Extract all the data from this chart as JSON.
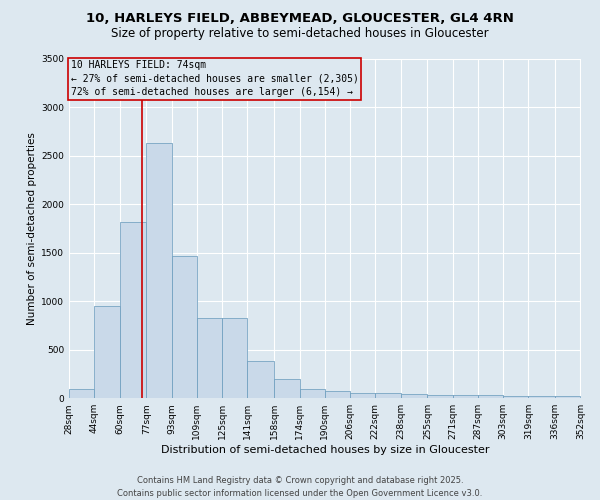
{
  "title": "10, HARLEYS FIELD, ABBEYMEAD, GLOUCESTER, GL4 4RN",
  "subtitle": "Size of property relative to semi-detached houses in Gloucester",
  "xlabel": "Distribution of semi-detached houses by size in Gloucester",
  "ylabel": "Number of semi-detached properties",
  "footer_line1": "Contains HM Land Registry data © Crown copyright and database right 2025.",
  "footer_line2": "Contains public sector information licensed under the Open Government Licence v3.0.",
  "annotation_title": "10 HARLEYS FIELD: 74sqm",
  "annotation_line1": "← 27% of semi-detached houses are smaller (2,305)",
  "annotation_line2": "72% of semi-detached houses are larger (6,154) →",
  "bin_edges": [
    28,
    44,
    60,
    77,
    93,
    109,
    125,
    141,
    158,
    174,
    190,
    206,
    222,
    238,
    255,
    271,
    287,
    303,
    319,
    336,
    352
  ],
  "bar_heights": [
    95,
    950,
    1820,
    2630,
    1470,
    830,
    830,
    380,
    200,
    100,
    70,
    55,
    50,
    40,
    35,
    30,
    28,
    25,
    22,
    20
  ],
  "bar_color": "#c9d9e9",
  "bar_edge_color": "#6699bb",
  "vline_color": "#cc0000",
  "vline_x": 74,
  "annotation_box_color": "#cc0000",
  "background_color": "#dde8f0",
  "ylim": [
    0,
    3500
  ],
  "yticks": [
    0,
    500,
    1000,
    1500,
    2000,
    2500,
    3000,
    3500
  ],
  "title_fontsize": 9.5,
  "subtitle_fontsize": 8.5,
  "tick_fontsize": 6.5,
  "ylabel_fontsize": 7.5,
  "xlabel_fontsize": 8,
  "footer_fontsize": 6,
  "annotation_fontsize": 7
}
